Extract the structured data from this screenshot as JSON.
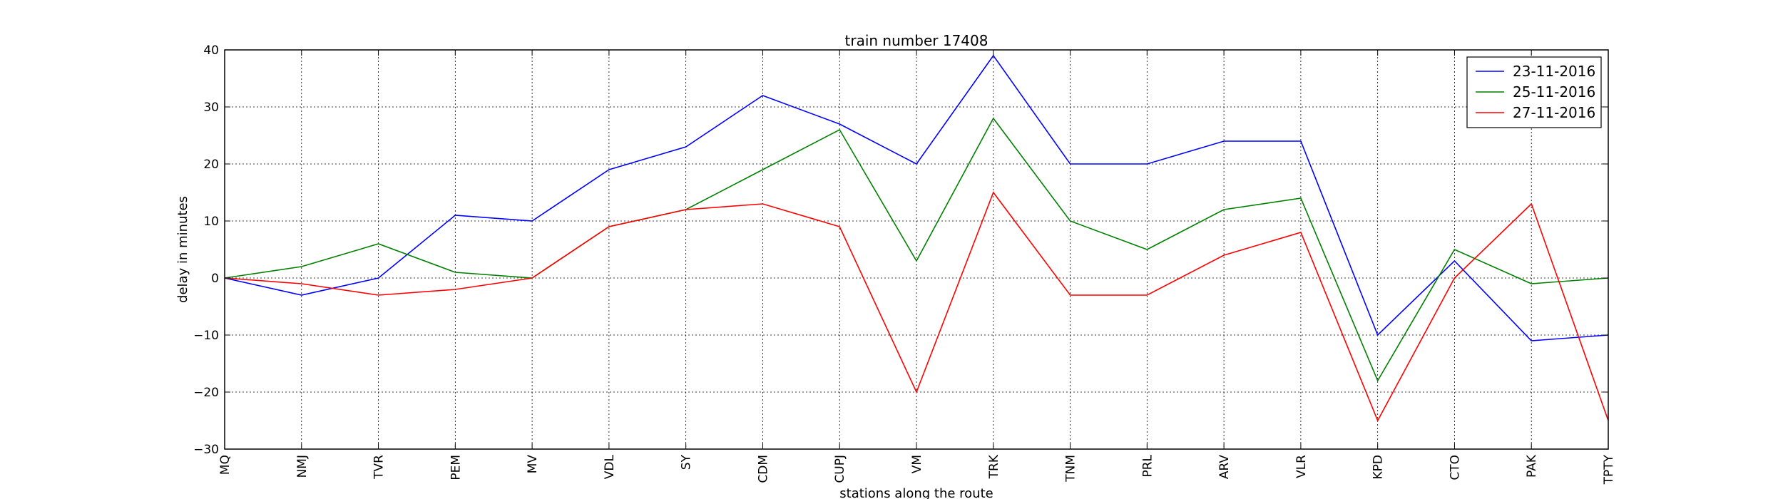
{
  "chart_data": {
    "type": "line",
    "title": "train number 17408",
    "xlabel": "stations along the route",
    "ylabel": "delay in minutes",
    "categories": [
      "MQ",
      "NMJ",
      "TVR",
      "PEM",
      "MV",
      "VDL",
      "SY",
      "CDM",
      "CUPJ",
      "VM",
      "TRK",
      "TNM",
      "PRL",
      "ARV",
      "VLR",
      "KPD",
      "CTO",
      "PAK",
      "TPTY"
    ],
    "ylim": [
      -30,
      40
    ],
    "yticks": [
      -30,
      -20,
      -10,
      0,
      10,
      20,
      30,
      40
    ],
    "grid": true,
    "legend_position": "top-right",
    "series": [
      {
        "name": "23-11-2016",
        "color": "#0000ff",
        "values": [
          0,
          -3,
          0,
          11,
          10,
          19,
          23,
          32,
          27,
          20,
          39,
          20,
          20,
          24,
          24,
          -10,
          3,
          -11,
          -10
        ]
      },
      {
        "name": "25-11-2016",
        "color": "#008000",
        "values": [
          0,
          2,
          6,
          1,
          0,
          9,
          12,
          19,
          26,
          3,
          28,
          10,
          5,
          12,
          14,
          -18,
          5,
          -1,
          0
        ]
      },
      {
        "name": "27-11-2016",
        "color": "#ff0000",
        "values": [
          0,
          -1,
          -3,
          -2,
          0,
          9,
          12,
          13,
          9,
          -20,
          15,
          -3,
          -3,
          4,
          8,
          -25,
          0,
          13,
          -25
        ]
      }
    ]
  }
}
